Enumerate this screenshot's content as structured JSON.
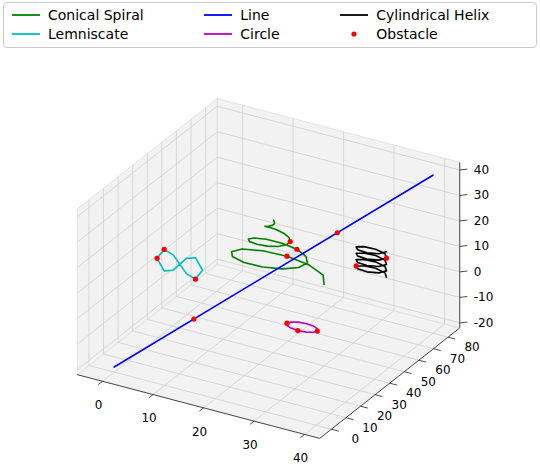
{
  "chart_data": {
    "type": "line3d",
    "xlim": [
      -5,
      43
    ],
    "ylim": [
      -8,
      88
    ],
    "zlim": [
      -22,
      43
    ],
    "xticks": [
      0,
      10,
      20,
      30,
      40
    ],
    "yticks": [
      0,
      10,
      20,
      30,
      40,
      50,
      60,
      70,
      80
    ],
    "zticks": [
      -20,
      -10,
      0,
      10,
      20,
      30,
      40
    ],
    "grid": true,
    "legend": "upper center",
    "series": [
      {
        "name": "Conical Spiral",
        "color": "#008000",
        "type": "line",
        "line_style": "solid",
        "x": [
          30,
          28.4,
          24.7,
          20,
          15.6,
          12.5,
          11.7,
          13.0,
          16.1,
          20,
          23.6,
          26.0,
          26.7,
          25.5,
          23.1,
          20,
          17.2,
          15.4,
          15,
          15.9,
          17.8,
          20,
          21.9,
          23.1,
          23.3,
          22.6,
          21.4,
          20,
          18.9,
          18.3,
          18.3,
          18.8,
          19.4,
          20,
          20.3,
          20.2,
          20
        ],
        "y": [
          40,
          44.9,
          48.2,
          49.2,
          47.7,
          44.3,
          40,
          36.0,
          33.3,
          32.5,
          33.7,
          36.5,
          40,
          43.2,
          45.3,
          45.8,
          44.8,
          42.6,
          40,
          37.6,
          36.2,
          35.8,
          36.6,
          38.2,
          40,
          41.5,
          42.4,
          42.5,
          41.9,
          41.0,
          40,
          39.3,
          39.0,
          39.2,
          39.5,
          39.9,
          40
        ],
        "z": [
          10,
          10.6,
          11.1,
          11.7,
          12.2,
          12.8,
          13.3,
          13.9,
          14.4,
          15,
          15.6,
          16.1,
          16.7,
          17.2,
          17.8,
          18.3,
          18.9,
          19.4,
          20,
          20.6,
          21.1,
          21.7,
          22.2,
          22.8,
          23.3,
          23.9,
          24.4,
          25,
          25.6,
          26.1,
          26.7,
          27.2,
          27.8,
          28.3,
          28.9,
          29.4,
          30
        ]
      },
      {
        "name": "Lemniscate",
        "color": "#00bfbf",
        "type": "line",
        "line_style": "solid",
        "x": [
          4.5,
          3.1,
          1.3,
          0,
          -1.3,
          -3.1,
          -4.5,
          -3.1,
          -1.3,
          0,
          1.3,
          3.1,
          4.5
        ],
        "y": [
          45,
          45,
          45,
          45,
          45,
          45,
          45,
          45,
          45,
          45,
          45,
          45,
          45
        ],
        "z": [
          0,
          4.2,
          3.0,
          0,
          -3.0,
          -4.2,
          0,
          4.2,
          3.0,
          0,
          -3.0,
          -4.2,
          0
        ]
      },
      {
        "name": "Line",
        "color": "#0000ff",
        "type": "line",
        "line_style": "solid",
        "x": [
          0,
          40
        ],
        "y": [
          0,
          80
        ],
        "z": [
          -20,
          40
        ]
      },
      {
        "name": "Circle",
        "color": "#bf00bf",
        "type": "line",
        "line_style": "solid",
        "x": [
          33,
          32.6,
          31.5,
          30,
          28.5,
          27.4,
          27,
          27.4,
          28.5,
          30,
          31.5,
          32.6,
          33
        ],
        "y": [
          25,
          26.5,
          27.6,
          28,
          27.6,
          26.5,
          25,
          23.5,
          22.4,
          22,
          22.4,
          23.5,
          25
        ],
        "z": [
          0,
          0,
          0,
          0,
          0,
          0,
          0,
          0,
          0,
          0,
          0,
          0,
          0
        ]
      },
      {
        "name": "Cylindrical Helix",
        "color": "#000000",
        "type": "line",
        "line_style": "solid",
        "x": [
          36,
          35.1,
          33,
          30.9,
          30,
          30.9,
          33,
          35.1,
          36,
          35.1,
          33,
          30.9,
          30,
          30.9,
          33,
          35.1,
          36,
          35.1,
          33,
          30.9,
          30,
          30.9,
          33,
          35.1,
          36,
          35.1,
          33,
          30.9,
          30,
          30.9,
          33,
          35.1,
          36
        ],
        "y": [
          62,
          64.1,
          65,
          64.1,
          62,
          59.9,
          59,
          59.9,
          62,
          64.1,
          65,
          64.1,
          62,
          59.9,
          59,
          59.9,
          62,
          64.1,
          65,
          64.1,
          62,
          59.9,
          59,
          59.9,
          62,
          64.1,
          65,
          64.1,
          62,
          59.9,
          59,
          59.9,
          62
        ],
        "z": [
          6,
          6.3,
          6.6,
          6.9,
          7.3,
          7.6,
          7.9,
          8.2,
          8.5,
          8.8,
          9.1,
          9.4,
          9.8,
          10.1,
          10.4,
          10.7,
          11,
          11.3,
          11.6,
          11.9,
          12.3,
          12.6,
          12.9,
          13.2,
          13.5,
          13.8,
          14.1,
          14.4,
          14.8,
          15.1,
          15.4,
          15.7,
          16
        ]
      },
      {
        "name": "Obstacle",
        "color": "#ff0000",
        "type": "scatter",
        "marker": "circle",
        "x": [
          10,
          28,
          23.3,
          23.1,
          20,
          30,
          36,
          -3.1,
          -4.5,
          3.1,
          27,
          30,
          33
        ],
        "y": [
          20,
          56,
          40,
          45.3,
          49.2,
          62,
          62,
          45,
          45,
          45,
          25,
          22,
          25
        ],
        "z": [
          -5,
          22,
          23.3,
          17.8,
          11.7,
          7.3,
          13.5,
          4.2,
          0,
          -4.2,
          0,
          0,
          0
        ]
      }
    ]
  }
}
